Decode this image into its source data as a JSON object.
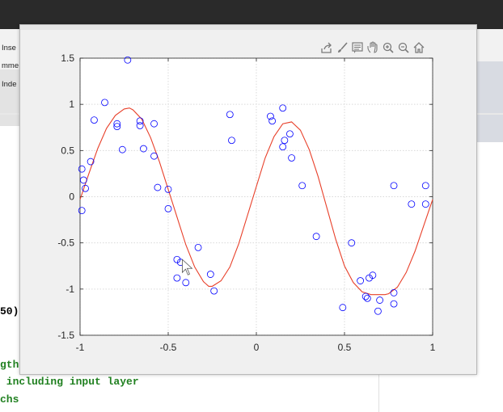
{
  "background": {
    "ribbon_labels": [
      "Inse",
      "mme",
      "Inde"
    ],
    "code_lines": [
      "50)",
      "gth",
      " including input layer",
      "chs"
    ]
  },
  "figure": {
    "toolbar_icons": [
      "export-icon",
      "brush-icon",
      "data-tips-icon",
      "pan-icon",
      "zoom-in-icon",
      "zoom-out-icon",
      "home-icon"
    ]
  },
  "chart_data": {
    "type": "scatter",
    "title": "",
    "xlabel": "",
    "ylabel": "",
    "xlim": [
      -1,
      1
    ],
    "ylim": [
      -1.5,
      1.5
    ],
    "xticks": [
      -1,
      -0.5,
      0,
      0.5,
      1
    ],
    "yticks": [
      -1.5,
      -1,
      -0.5,
      0,
      0.5,
      1,
      1.5
    ],
    "xtick_labels": [
      "-1",
      "-0.5",
      "0",
      "0.5",
      "1"
    ],
    "ytick_labels": [
      "-1.5",
      "-1",
      "-0.5",
      "0",
      "0.5",
      "1",
      "1.5"
    ],
    "grid": true,
    "colors": {
      "markers": "#0000ff",
      "fit_line": "#e8402a"
    },
    "series": [
      {
        "kind": "markers",
        "x": [
          -0.99,
          -0.99,
          -0.98,
          -0.97,
          -0.94,
          -0.92,
          -0.86,
          -0.79,
          -0.79,
          -0.76,
          -0.73,
          -0.66,
          -0.66,
          -0.64,
          -0.58,
          -0.58,
          -0.56,
          -0.5,
          -0.5,
          -0.45,
          -0.45,
          -0.43,
          -0.4,
          -0.33,
          -0.26,
          -0.24,
          -0.15,
          -0.14,
          0.08,
          0.09,
          0.15,
          0.15,
          0.16,
          0.19,
          0.2,
          0.26,
          0.34,
          0.49,
          0.54,
          0.59,
          0.62,
          0.63,
          0.64,
          0.66,
          0.69,
          0.7,
          0.78,
          0.78,
          0.78,
          0.88,
          0.96,
          0.96
        ],
        "y": [
          0.3,
          -0.15,
          0.18,
          0.09,
          0.38,
          0.83,
          1.02,
          0.76,
          0.79,
          0.51,
          1.48,
          0.77,
          0.82,
          0.52,
          0.44,
          0.79,
          0.1,
          -0.13,
          0.08,
          -0.68,
          -0.88,
          -0.71,
          -0.93,
          -0.55,
          -0.84,
          -1.02,
          0.89,
          0.61,
          0.87,
          0.82,
          0.54,
          0.96,
          0.61,
          0.68,
          0.42,
          0.12,
          -0.43,
          -1.2,
          -0.5,
          -0.91,
          -1.08,
          -1.1,
          -0.88,
          -0.85,
          -1.24,
          -1.12,
          -1.16,
          -1.04,
          0.12,
          -0.08,
          0.12,
          -0.08
        ]
      },
      {
        "kind": "line",
        "x": [
          -1.0,
          -0.95,
          -0.9,
          -0.85,
          -0.8,
          -0.75,
          -0.72,
          -0.7,
          -0.65,
          -0.6,
          -0.55,
          -0.5,
          -0.45,
          -0.4,
          -0.35,
          -0.3,
          -0.27,
          -0.25,
          -0.2,
          -0.15,
          -0.1,
          -0.05,
          0.0,
          0.05,
          0.1,
          0.15,
          0.2,
          0.25,
          0.3,
          0.35,
          0.4,
          0.45,
          0.5,
          0.55,
          0.6,
          0.65,
          0.7,
          0.73,
          0.75,
          0.8,
          0.85,
          0.9,
          0.95,
          1.0
        ],
        "y": [
          -0.03,
          0.25,
          0.52,
          0.74,
          0.88,
          0.95,
          0.96,
          0.94,
          0.84,
          0.64,
          0.38,
          0.08,
          -0.22,
          -0.52,
          -0.76,
          -0.92,
          -0.97,
          -0.97,
          -0.91,
          -0.76,
          -0.51,
          -0.2,
          0.11,
          0.42,
          0.65,
          0.79,
          0.81,
          0.72,
          0.51,
          0.22,
          -0.12,
          -0.46,
          -0.75,
          -0.93,
          -1.03,
          -1.06,
          -1.06,
          -1.06,
          -1.05,
          -0.98,
          -0.82,
          -0.59,
          -0.31,
          -0.03
        ]
      }
    ]
  }
}
